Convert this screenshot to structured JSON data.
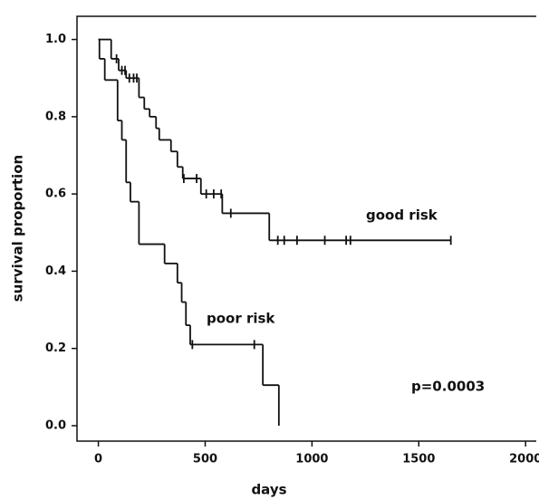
{
  "chart_data": {
    "type": "step",
    "xlabel": "days",
    "ylabel": "survival proportion",
    "xlim": [
      -100,
      2050
    ],
    "ylim": [
      -0.04,
      1.06
    ],
    "xticks": [
      0,
      500,
      1000,
      1500,
      2000
    ],
    "yticks": [
      {
        "value": 0,
        "label": "0.0"
      },
      {
        "value": 0.2,
        "label": "0.2"
      },
      {
        "value": 0.4,
        "label": "0.4"
      },
      {
        "value": 0.6,
        "label": "0.6"
      },
      {
        "value": 0.8,
        "label": "0.8"
      },
      {
        "value": 1,
        "label": "1.0"
      }
    ],
    "series": [
      {
        "name": "good risk",
        "color": "#111111",
        "x": [
          0,
          60,
          95,
          130,
          190,
          215,
          240,
          270,
          285,
          340,
          370,
          395,
          480,
          580,
          800,
          1650
        ],
        "values": [
          1.0,
          0.95,
          0.92,
          0.9,
          0.85,
          0.82,
          0.8,
          0.77,
          0.74,
          0.71,
          0.67,
          0.64,
          0.6,
          0.55,
          0.48,
          0.48
        ],
        "censored_x": [
          85,
          110,
          125,
          145,
          165,
          180,
          400,
          460,
          505,
          540,
          575,
          620,
          840,
          870,
          930,
          1060,
          1160,
          1180,
          1650
        ],
        "censored_values": [
          0.95,
          0.92,
          0.92,
          0.9,
          0.9,
          0.9,
          0.64,
          0.64,
          0.6,
          0.6,
          0.6,
          0.55,
          0.48,
          0.48,
          0.48,
          0.48,
          0.48,
          0.48,
          0.48
        ]
      },
      {
        "name": "poor risk",
        "color": "#111111",
        "x": [
          0,
          5,
          30,
          90,
          110,
          130,
          150,
          190,
          310,
          370,
          390,
          410,
          430,
          770,
          845
        ],
        "values": [
          1.0,
          0.95,
          0.895,
          0.79,
          0.74,
          0.63,
          0.58,
          0.47,
          0.42,
          0.37,
          0.32,
          0.26,
          0.21,
          0.105,
          0
        ],
        "censored_x": [
          440,
          730
        ],
        "censored_values": [
          0.21,
          0.21
        ]
      }
    ],
    "annotation": "p=0.0003"
  }
}
